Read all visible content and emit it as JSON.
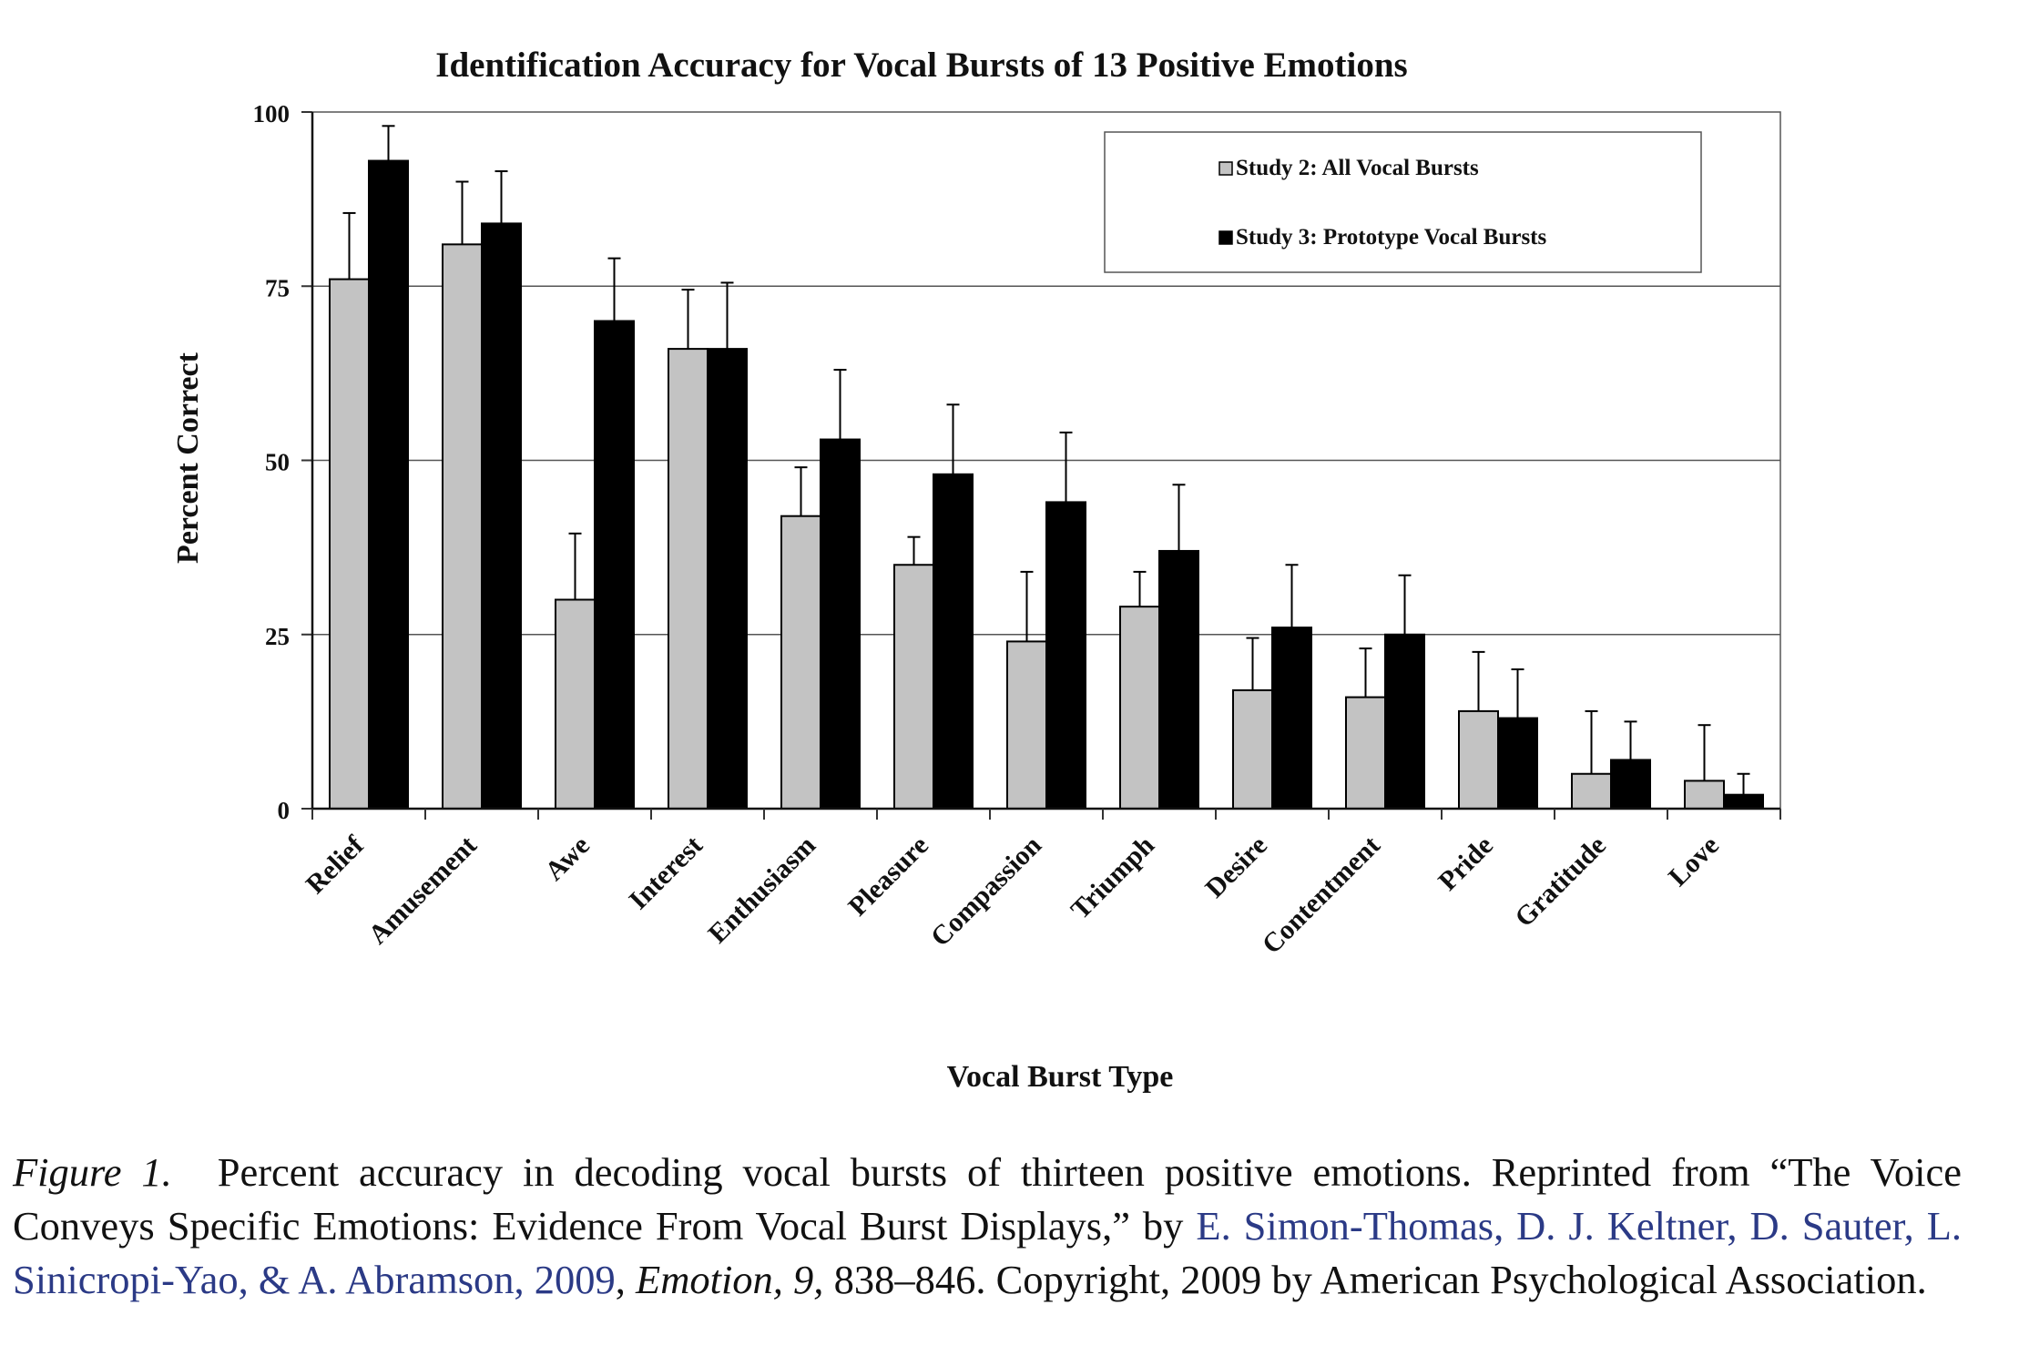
{
  "chart_data": {
    "type": "bar",
    "title": "Identification Accuracy for Vocal Bursts of 13 Positive Emotions",
    "xlabel": "Vocal Burst Type",
    "ylabel": "Percent Correct",
    "ylim": [
      0,
      100
    ],
    "yticks": [
      "0",
      "25",
      "50",
      "75",
      "100"
    ],
    "grid": "horizontal",
    "legend_position": "top-right",
    "categories": [
      "Relief",
      "Amusement",
      "Awe",
      "Interest",
      "Enthusiasm",
      "Pleasure",
      "Compassion",
      "Triumph",
      "Desire",
      "Contentment",
      "Pride",
      "Gratitude",
      "Love"
    ],
    "series": [
      {
        "name": "Study 2: All Vocal Bursts",
        "color": "#c3c3c3",
        "values": [
          76,
          81,
          30,
          66,
          42,
          35,
          24,
          29,
          17,
          16,
          14,
          5,
          4
        ],
        "error_upper": [
          85.5,
          90,
          39.5,
          74.5,
          49,
          39,
          34,
          34,
          24.5,
          23,
          22.5,
          14,
          12
        ]
      },
      {
        "name": "Study 3: Prototype Vocal Bursts",
        "color": "#000000",
        "values": [
          93,
          84,
          70,
          66,
          53,
          48,
          44,
          37,
          26,
          25,
          13,
          7,
          2
        ],
        "error_upper": [
          98,
          91.5,
          79,
          75.5,
          63,
          58,
          54,
          46.5,
          35,
          33.5,
          20,
          12.5,
          5
        ]
      }
    ]
  },
  "caption": {
    "label": "Figure 1.",
    "text_before": "Percent accuracy in decoding vocal bursts of thirteen positive emotions. Reprinted from “The Voice Conveys Specific Emotions: Evidence From Vocal Burst Displays,” by",
    "authors": "E. Simon-Thomas, D. J. Keltner, D. Sauter, L. Sinicropi-Yao, & A. Abramson, 2009",
    "comma": ",",
    "journal": "Emotion, 9,",
    "text_after": "838–846. Copyright, 2009 by American Psychological Association."
  }
}
